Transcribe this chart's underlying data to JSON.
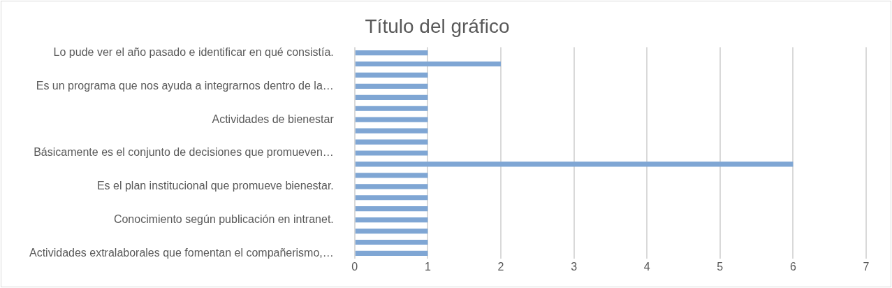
{
  "chart_data": {
    "type": "bar",
    "orientation": "horizontal",
    "title": "Título del gráfico",
    "categories": [
      "Lo pude ver el año pasado e identificar en qué consistía.",
      null,
      null,
      "Es un programa que nos ayuda a integrarnos dentro de la…",
      null,
      null,
      "Actividades de bienestar",
      null,
      null,
      "Básicamente es el conjunto de decisiones que promueven…",
      null,
      null,
      "Es el plan institucional que promueve bienestar.",
      null,
      null,
      "Conocimiento según publicación en intranet.",
      null,
      null,
      "Actividades extralaborales que fomentan el compañerismo,…"
    ],
    "values": [
      1,
      2,
      1,
      1,
      1,
      1,
      1,
      1,
      1,
      1,
      6,
      1,
      1,
      1,
      1,
      1,
      1,
      1,
      1
    ],
    "color": "#7fa6d4",
    "xlim": [
      0,
      7
    ],
    "xticks": [
      0,
      1,
      2,
      3,
      4,
      5,
      6,
      7
    ],
    "grid": "x",
    "legend": false
  }
}
